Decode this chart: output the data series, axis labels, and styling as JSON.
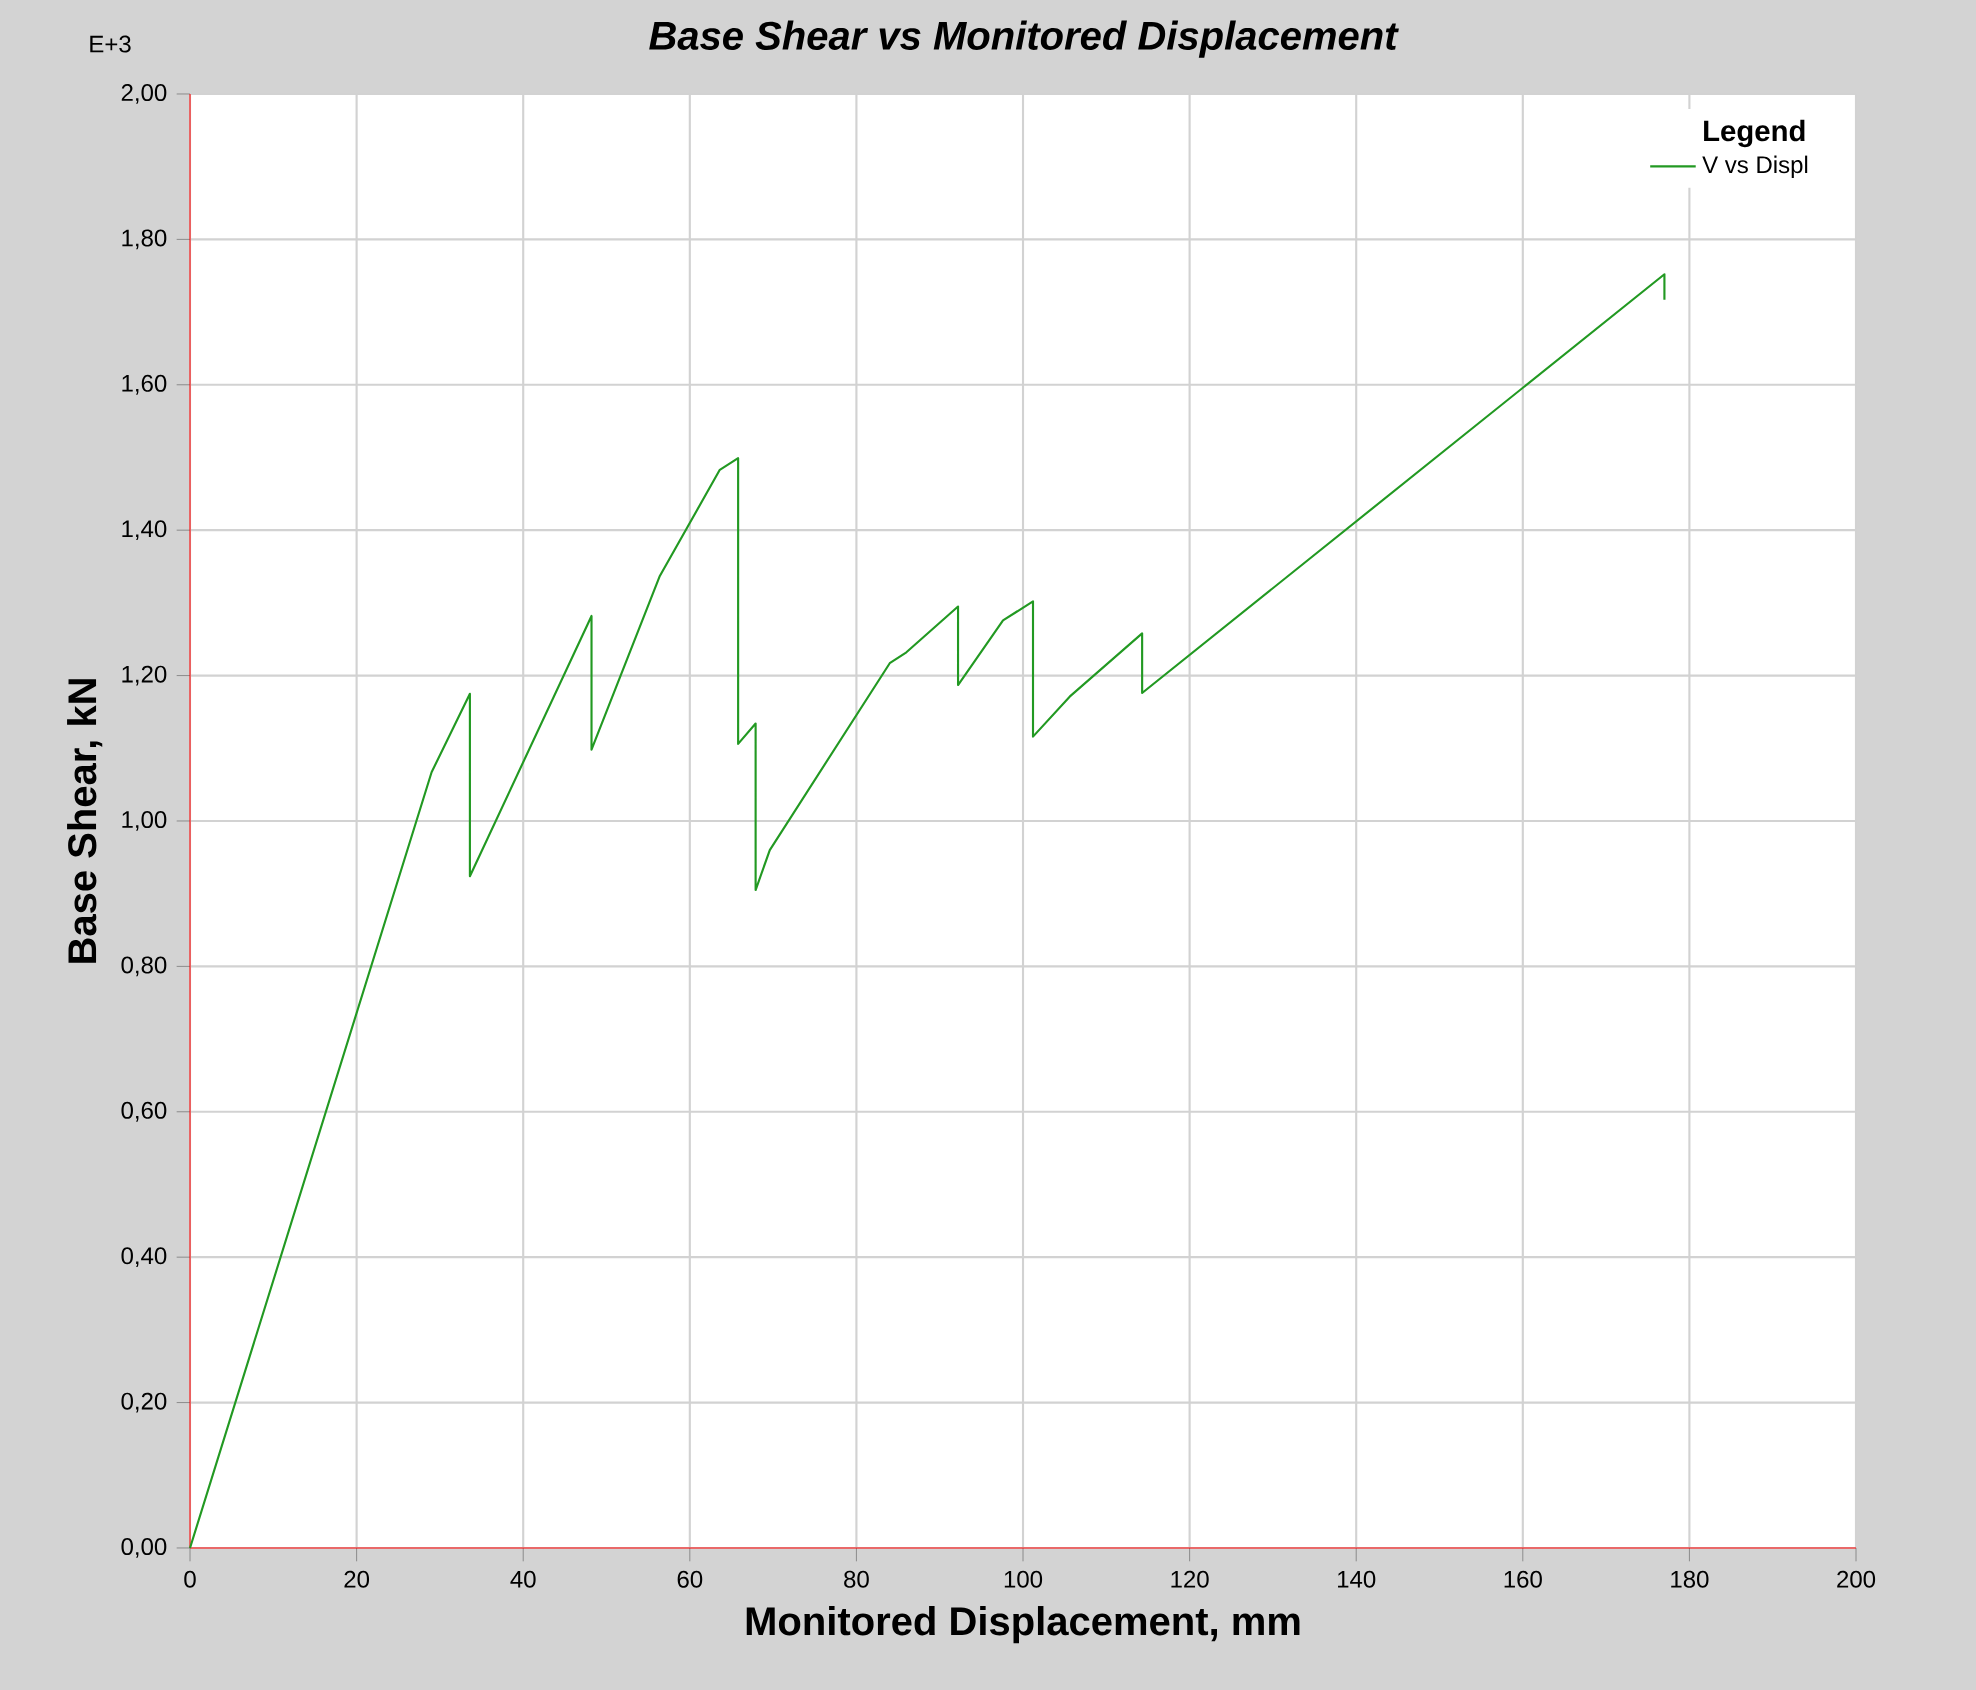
{
  "chart_data": {
    "type": "line",
    "title": "Base Shear vs Monitored Displacement",
    "xlabel": "Monitored Displacement, mm",
    "ylabel": "Base Shear, kN",
    "legend_title": "Legend",
    "annotations": [
      "E+3"
    ],
    "series": [
      {
        "name": "V vs Displ",
        "color": "#229922",
        "x": [
          0,
          29,
          33.6,
          33.6,
          48.2,
          48.2,
          56.4,
          63.6,
          65.8,
          65.8,
          67.9,
          67.9,
          69.6,
          84,
          86,
          92.2,
          92.2,
          97.6,
          101.2,
          101.2,
          105.6,
          114.3,
          114.3,
          177,
          177
        ],
        "values": [
          0,
          1.067,
          1.175,
          0.924,
          1.282,
          1.098,
          1.337,
          1.483,
          1.499,
          1.106,
          1.134,
          0.905,
          0.96,
          1.217,
          1.232,
          1.295,
          1.187,
          1.276,
          1.302,
          1.116,
          1.171,
          1.258,
          1.176,
          1.752,
          1.717
        ]
      }
    ],
    "xlim": [
      0,
      200
    ],
    "ylim": [
      0,
      2
    ],
    "xticks": [
      0,
      20,
      40,
      60,
      80,
      100,
      120,
      140,
      160,
      180,
      200
    ],
    "yticks": [
      {
        "value": 0,
        "label": "0,00"
      },
      {
        "value": 0.2,
        "label": "0,20"
      },
      {
        "value": 0.4,
        "label": "0,40"
      },
      {
        "value": 0.6,
        "label": "0,60"
      },
      {
        "value": 0.8,
        "label": "0,80"
      },
      {
        "value": 1,
        "label": "1,00"
      },
      {
        "value": 1.2,
        "label": "1,20"
      },
      {
        "value": 1.4,
        "label": "1,40"
      },
      {
        "value": 1.6,
        "label": "1,60"
      },
      {
        "value": 1.8,
        "label": "1,80"
      },
      {
        "value": 2,
        "label": "2,00"
      }
    ],
    "grid": true,
    "legend": "top right",
    "marker": "none",
    "line_style": "solid"
  }
}
